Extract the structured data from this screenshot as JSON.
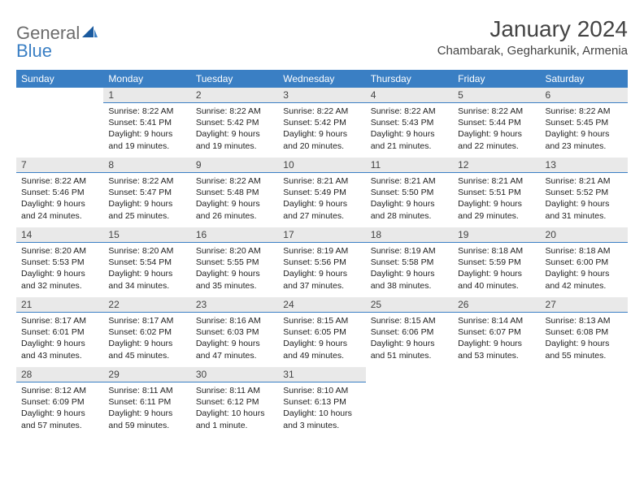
{
  "logo": {
    "part1": "General",
    "part2": "Blue"
  },
  "title": "January 2024",
  "subtitle": "Chambarak, Gegharkunik, Armenia",
  "colors": {
    "header_bg": "#3a7fc4",
    "header_text": "#ffffff",
    "daynum_bg": "#e9e9e9",
    "daynum_border": "#3a7fc4",
    "body_text": "#222222",
    "logo_general": "#6c6c6c",
    "logo_blue": "#3a7fc4"
  },
  "weekdays": [
    "Sunday",
    "Monday",
    "Tuesday",
    "Wednesday",
    "Thursday",
    "Friday",
    "Saturday"
  ],
  "weeks": [
    [
      null,
      {
        "day": "1",
        "sunrise": "8:22 AM",
        "sunset": "5:41 PM",
        "daylight": "9 hours and 19 minutes."
      },
      {
        "day": "2",
        "sunrise": "8:22 AM",
        "sunset": "5:42 PM",
        "daylight": "9 hours and 19 minutes."
      },
      {
        "day": "3",
        "sunrise": "8:22 AM",
        "sunset": "5:42 PM",
        "daylight": "9 hours and 20 minutes."
      },
      {
        "day": "4",
        "sunrise": "8:22 AM",
        "sunset": "5:43 PM",
        "daylight": "9 hours and 21 minutes."
      },
      {
        "day": "5",
        "sunrise": "8:22 AM",
        "sunset": "5:44 PM",
        "daylight": "9 hours and 22 minutes."
      },
      {
        "day": "6",
        "sunrise": "8:22 AM",
        "sunset": "5:45 PM",
        "daylight": "9 hours and 23 minutes."
      }
    ],
    [
      {
        "day": "7",
        "sunrise": "8:22 AM",
        "sunset": "5:46 PM",
        "daylight": "9 hours and 24 minutes."
      },
      {
        "day": "8",
        "sunrise": "8:22 AM",
        "sunset": "5:47 PM",
        "daylight": "9 hours and 25 minutes."
      },
      {
        "day": "9",
        "sunrise": "8:22 AM",
        "sunset": "5:48 PM",
        "daylight": "9 hours and 26 minutes."
      },
      {
        "day": "10",
        "sunrise": "8:21 AM",
        "sunset": "5:49 PM",
        "daylight": "9 hours and 27 minutes."
      },
      {
        "day": "11",
        "sunrise": "8:21 AM",
        "sunset": "5:50 PM",
        "daylight": "9 hours and 28 minutes."
      },
      {
        "day": "12",
        "sunrise": "8:21 AM",
        "sunset": "5:51 PM",
        "daylight": "9 hours and 29 minutes."
      },
      {
        "day": "13",
        "sunrise": "8:21 AM",
        "sunset": "5:52 PM",
        "daylight": "9 hours and 31 minutes."
      }
    ],
    [
      {
        "day": "14",
        "sunrise": "8:20 AM",
        "sunset": "5:53 PM",
        "daylight": "9 hours and 32 minutes."
      },
      {
        "day": "15",
        "sunrise": "8:20 AM",
        "sunset": "5:54 PM",
        "daylight": "9 hours and 34 minutes."
      },
      {
        "day": "16",
        "sunrise": "8:20 AM",
        "sunset": "5:55 PM",
        "daylight": "9 hours and 35 minutes."
      },
      {
        "day": "17",
        "sunrise": "8:19 AM",
        "sunset": "5:56 PM",
        "daylight": "9 hours and 37 minutes."
      },
      {
        "day": "18",
        "sunrise": "8:19 AM",
        "sunset": "5:58 PM",
        "daylight": "9 hours and 38 minutes."
      },
      {
        "day": "19",
        "sunrise": "8:18 AM",
        "sunset": "5:59 PM",
        "daylight": "9 hours and 40 minutes."
      },
      {
        "day": "20",
        "sunrise": "8:18 AM",
        "sunset": "6:00 PM",
        "daylight": "9 hours and 42 minutes."
      }
    ],
    [
      {
        "day": "21",
        "sunrise": "8:17 AM",
        "sunset": "6:01 PM",
        "daylight": "9 hours and 43 minutes."
      },
      {
        "day": "22",
        "sunrise": "8:17 AM",
        "sunset": "6:02 PM",
        "daylight": "9 hours and 45 minutes."
      },
      {
        "day": "23",
        "sunrise": "8:16 AM",
        "sunset": "6:03 PM",
        "daylight": "9 hours and 47 minutes."
      },
      {
        "day": "24",
        "sunrise": "8:15 AM",
        "sunset": "6:05 PM",
        "daylight": "9 hours and 49 minutes."
      },
      {
        "day": "25",
        "sunrise": "8:15 AM",
        "sunset": "6:06 PM",
        "daylight": "9 hours and 51 minutes."
      },
      {
        "day": "26",
        "sunrise": "8:14 AM",
        "sunset": "6:07 PM",
        "daylight": "9 hours and 53 minutes."
      },
      {
        "day": "27",
        "sunrise": "8:13 AM",
        "sunset": "6:08 PM",
        "daylight": "9 hours and 55 minutes."
      }
    ],
    [
      {
        "day": "28",
        "sunrise": "8:12 AM",
        "sunset": "6:09 PM",
        "daylight": "9 hours and 57 minutes."
      },
      {
        "day": "29",
        "sunrise": "8:11 AM",
        "sunset": "6:11 PM",
        "daylight": "9 hours and 59 minutes."
      },
      {
        "day": "30",
        "sunrise": "8:11 AM",
        "sunset": "6:12 PM",
        "daylight": "10 hours and 1 minute."
      },
      {
        "day": "31",
        "sunrise": "8:10 AM",
        "sunset": "6:13 PM",
        "daylight": "10 hours and 3 minutes."
      },
      null,
      null,
      null
    ]
  ],
  "labels": {
    "sunrise": "Sunrise:",
    "sunset": "Sunset:",
    "daylight": "Daylight:"
  }
}
